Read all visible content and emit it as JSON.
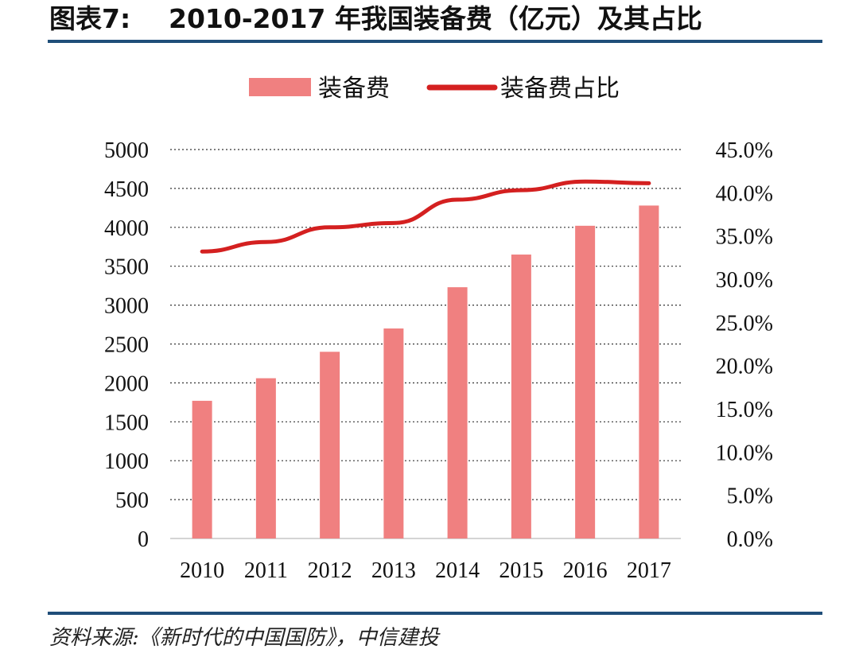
{
  "figure": {
    "label": "图表7:",
    "title": "2010-2017 年我国装备费（亿元）及其占比",
    "source": "资料来源:《新时代的中国国防》，中信建投",
    "rule_color": "#1f4e79"
  },
  "chart_data": {
    "type": "bar",
    "title": "2010-2017 年我国装备费（亿元）及其占比",
    "categories": [
      "2010",
      "2011",
      "2012",
      "2013",
      "2014",
      "2015",
      "2016",
      "2017"
    ],
    "series": [
      {
        "name": "装备费",
        "type": "bar",
        "axis": "left",
        "color": "#f08080",
        "values": [
          1770,
          2060,
          2400,
          2700,
          3230,
          3650,
          4020,
          4280
        ]
      },
      {
        "name": "装备费占比",
        "type": "line",
        "axis": "right",
        "color": "#d42020",
        "values": [
          33.2,
          34.3,
          36.0,
          36.5,
          39.2,
          40.3,
          41.3,
          41.1
        ]
      }
    ],
    "y_left": {
      "min": 0,
      "max": 5000,
      "ticks": [
        "0",
        "500",
        "1000",
        "1500",
        "2000",
        "2500",
        "3000",
        "3500",
        "4000",
        "4500",
        "5000"
      ]
    },
    "y_right": {
      "min": 0,
      "max": 45,
      "ticks": [
        "0.0%",
        "5.0%",
        "10.0%",
        "15.0%",
        "20.0%",
        "25.0%",
        "30.0%",
        "35.0%",
        "40.0%",
        "45.0%"
      ]
    },
    "grid": "horizontal-dotted",
    "legend_position": "top-center"
  }
}
